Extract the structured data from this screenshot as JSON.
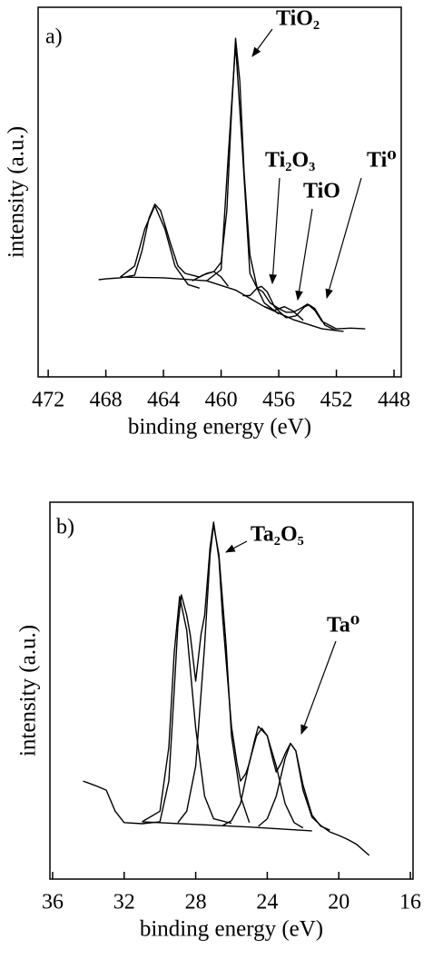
{
  "chart_data": [
    {
      "type": "line",
      "color": "#000000",
      "xlabel": "binding energy (eV)",
      "ylabel": "intensity (a.u.)",
      "xlim": [
        472.7,
        447.5
      ],
      "ylim": [
        0,
        100
      ],
      "xticks": [
        472,
        468,
        464,
        460,
        456,
        452,
        448
      ],
      "annotations": [
        "a)",
        "TiO₂",
        "Ti₂O₃",
        "TiO",
        "Ti⁰"
      ],
      "series": [
        {
          "x": [
            468.5,
            468,
            467,
            466,
            465.5,
            465,
            464.6,
            464.2,
            463.5,
            463,
            462.5,
            462,
            461.5,
            461,
            460.5,
            460,
            459.6,
            459.3,
            459,
            458.7,
            458.4,
            458,
            457.5,
            457.1,
            456.6,
            456,
            455.5,
            455,
            454.5,
            454,
            453.5,
            453,
            452.5,
            452,
            451,
            450
          ],
          "values": [
            26.3,
            26.5,
            26.8,
            27.5,
            34,
            43,
            46.7,
            45,
            36,
            30,
            28,
            27.5,
            27,
            28,
            28.5,
            31,
            45,
            70,
            91.6,
            80,
            55,
            33,
            24,
            23,
            20,
            18.5,
            17.5,
            17.5,
            18.5,
            19.7,
            18,
            15,
            14,
            13,
            13.2,
            13
          ]
        },
        {
          "x": [
            467,
            464,
            461,
            459,
            457,
            455,
            453,
            451.5
          ],
          "values": [
            27,
            26.8,
            26,
            23.5,
            19,
            15.5,
            13,
            12.3
          ]
        },
        {
          "x": [
            467,
            466,
            465.3,
            464.6,
            463.9,
            463.2,
            462.3,
            461.5
          ],
          "values": [
            27,
            30,
            40,
            46.3,
            40,
            30,
            25,
            24
          ]
        },
        {
          "x": [
            461,
            460,
            459.5,
            459,
            458.5,
            458,
            457,
            456
          ],
          "values": [
            26,
            29,
            60,
            90,
            60,
            28,
            20,
            17
          ]
        },
        {
          "x": [
            462,
            461.3,
            460.5,
            460,
            459.5
          ],
          "values": [
            26,
            27.5,
            28.5,
            27,
            24.5
          ]
        },
        {
          "x": [
            458.5,
            458,
            457.5,
            457.2,
            456.8,
            456.3,
            455.5
          ],
          "values": [
            22,
            22,
            24,
            24.5,
            23,
            19,
            16
          ]
        },
        {
          "x": [
            457,
            456.3,
            455.6,
            455,
            454.3
          ],
          "values": [
            19,
            18,
            19,
            17.8,
            15.3
          ]
        },
        {
          "x": [
            455.5,
            454.8,
            454.2,
            453.9,
            453.5,
            452.8,
            452
          ],
          "values": [
            16,
            16.5,
            19,
            19.5,
            18.5,
            14,
            12.5
          ]
        }
      ]
    },
    {
      "type": "line",
      "color": "#000000",
      "xlabel": "binding energy (eV)",
      "ylabel": "intensity (a.u.)",
      "xlim": [
        36.15,
        15.85
      ],
      "ylim": [
        0,
        100
      ],
      "xticks": [
        36,
        32,
        28,
        24,
        20,
        16
      ],
      "annotations": [
        "b)",
        "Ta₂O₅",
        "Ta⁰"
      ],
      "series": [
        {
          "x": [
            34.3,
            34,
            33.5,
            33,
            32.5,
            32,
            31,
            30,
            29.5,
            29.2,
            29,
            28.8,
            28.5,
            28.3,
            28,
            27.7,
            27.5,
            27.2,
            27,
            26.7,
            26.5,
            26.2,
            26,
            25.7,
            25.5,
            25.2,
            25,
            24.7,
            24.5,
            24.2,
            24,
            23.7,
            23.5,
            23.2,
            23,
            22.7,
            22.4,
            22,
            21.5,
            21,
            20.5,
            20,
            19.5,
            19,
            18.3
          ],
          "values": [
            26,
            25.5,
            24.6,
            23.6,
            18,
            15,
            14.7,
            15.2,
            26,
            50,
            67,
            75.4,
            70,
            64.6,
            52.5,
            65,
            69.9,
            88,
            94.7,
            85,
            69.9,
            52,
            40.5,
            31,
            26,
            28,
            30.8,
            37,
            40.5,
            39,
            38.1,
            32,
            28.4,
            31,
            33.3,
            36,
            34,
            23.6,
            16.4,
            14.2,
            12.5,
            11.6,
            10.5,
            9.2,
            6.3
          ]
        },
        {
          "x": [
            31,
            28,
            25,
            21.5
          ],
          "values": [
            15.2,
            14.5,
            13.8,
            12.8
          ]
        },
        {
          "x": [
            31,
            30,
            29.5,
            29.2,
            28.9,
            28.5,
            28,
            27.5,
            27,
            26
          ],
          "values": [
            15.2,
            18,
            35,
            60,
            75,
            66,
            40,
            22,
            16,
            14.8
          ]
        },
        {
          "x": [
            29,
            28.5,
            28,
            27.5,
            27.2,
            27,
            26.7,
            26.3,
            26,
            25.5,
            25
          ],
          "values": [
            15,
            18,
            30,
            62,
            86,
            94,
            86,
            62,
            38,
            22,
            15
          ]
        },
        {
          "x": [
            26.5,
            26,
            25.5,
            25,
            24.6,
            24.3,
            24,
            23.5,
            23,
            22.5,
            22
          ],
          "values": [
            14.2,
            15.5,
            20,
            31,
            38,
            40,
            38,
            30,
            20,
            15,
            13.6
          ]
        },
        {
          "x": [
            24.5,
            24,
            23.5,
            23,
            22.7,
            22.4,
            22,
            21.5,
            21,
            20.5
          ],
          "values": [
            14,
            16,
            22,
            32,
            36,
            34,
            25,
            17,
            14,
            13
          ]
        }
      ]
    }
  ]
}
